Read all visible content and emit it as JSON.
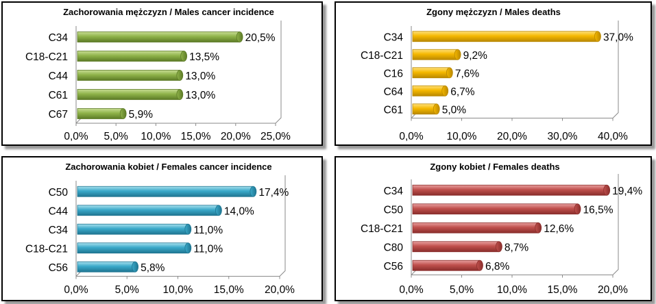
{
  "colors": {
    "green": [
      "#c8dd93",
      "#8fb34a",
      "#5c7a26"
    ],
    "yellow": [
      "#ffe07a",
      "#f5b800",
      "#b98800"
    ],
    "blue": [
      "#a8e0ee",
      "#3aa9c9",
      "#1f7591"
    ],
    "red": [
      "#e8a0a0",
      "#c0504d",
      "#8a2e2c"
    ]
  },
  "chart_data": [
    {
      "type": "bar",
      "orientation": "horizontal",
      "title": "Zachorowania mężczyzn / Males cancer incidence",
      "categories": [
        "C34",
        "C18-C21",
        "C44",
        "C61",
        "C67"
      ],
      "values": [
        20.5,
        13.5,
        13.0,
        13.0,
        5.9
      ],
      "value_labels": [
        "20,5%",
        "13,5%",
        "13,0%",
        "13,0%",
        "5,9%"
      ],
      "xlim": [
        0,
        25
      ],
      "ticks": [
        0,
        5,
        10,
        15,
        20,
        25
      ],
      "tick_labels": [
        "0,0%",
        "5,0%",
        "10,0%",
        "15,0%",
        "20,0%",
        "25,0%"
      ],
      "color": "green"
    },
    {
      "type": "bar",
      "orientation": "horizontal",
      "title": "Zgony mężczyzn / Males deaths",
      "categories": [
        "C34",
        "C18-C21",
        "C16",
        "C64",
        "C61"
      ],
      "values": [
        37.0,
        9.2,
        7.6,
        6.7,
        5.0
      ],
      "value_labels": [
        "37,0%",
        "9,2%",
        "7,6%",
        "6,7%",
        "5,0%"
      ],
      "xlim": [
        0,
        40
      ],
      "ticks": [
        0,
        10,
        20,
        30,
        40
      ],
      "tick_labels": [
        "0,0%",
        "10,0%",
        "20,0%",
        "30,0%",
        "40,0%"
      ],
      "color": "yellow"
    },
    {
      "type": "bar",
      "orientation": "horizontal",
      "title": "Zachorowania kobiet / Females cancer incidence",
      "categories": [
        "C50",
        "C44",
        "C34",
        "C18-C21",
        "C56"
      ],
      "values": [
        17.4,
        14.0,
        11.0,
        11.0,
        5.8
      ],
      "value_labels": [
        "17,4%",
        "14,0%",
        "11,0%",
        "11,0%",
        "5,8%"
      ],
      "xlim": [
        0,
        20
      ],
      "ticks": [
        0,
        5,
        10,
        15,
        20
      ],
      "tick_labels": [
        "0,0%",
        "5,0%",
        "10,0%",
        "15,0%",
        "20,0%"
      ],
      "color": "blue"
    },
    {
      "type": "bar",
      "orientation": "horizontal",
      "title": "Zgony kobiet / Females deaths",
      "categories": [
        "C34",
        "C50",
        "C18-C21",
        "C80",
        "C56"
      ],
      "values": [
        19.4,
        16.5,
        12.6,
        8.7,
        6.8
      ],
      "value_labels": [
        "19,4%",
        "16,5%",
        "12,6%",
        "8,7%",
        "6,8%"
      ],
      "xlim": [
        0,
        20
      ],
      "ticks": [
        0,
        5,
        10,
        15,
        20
      ],
      "tick_labels": [
        "0,0%",
        "5,0%",
        "10,0%",
        "15,0%",
        "20,0%"
      ],
      "color": "red"
    }
  ]
}
